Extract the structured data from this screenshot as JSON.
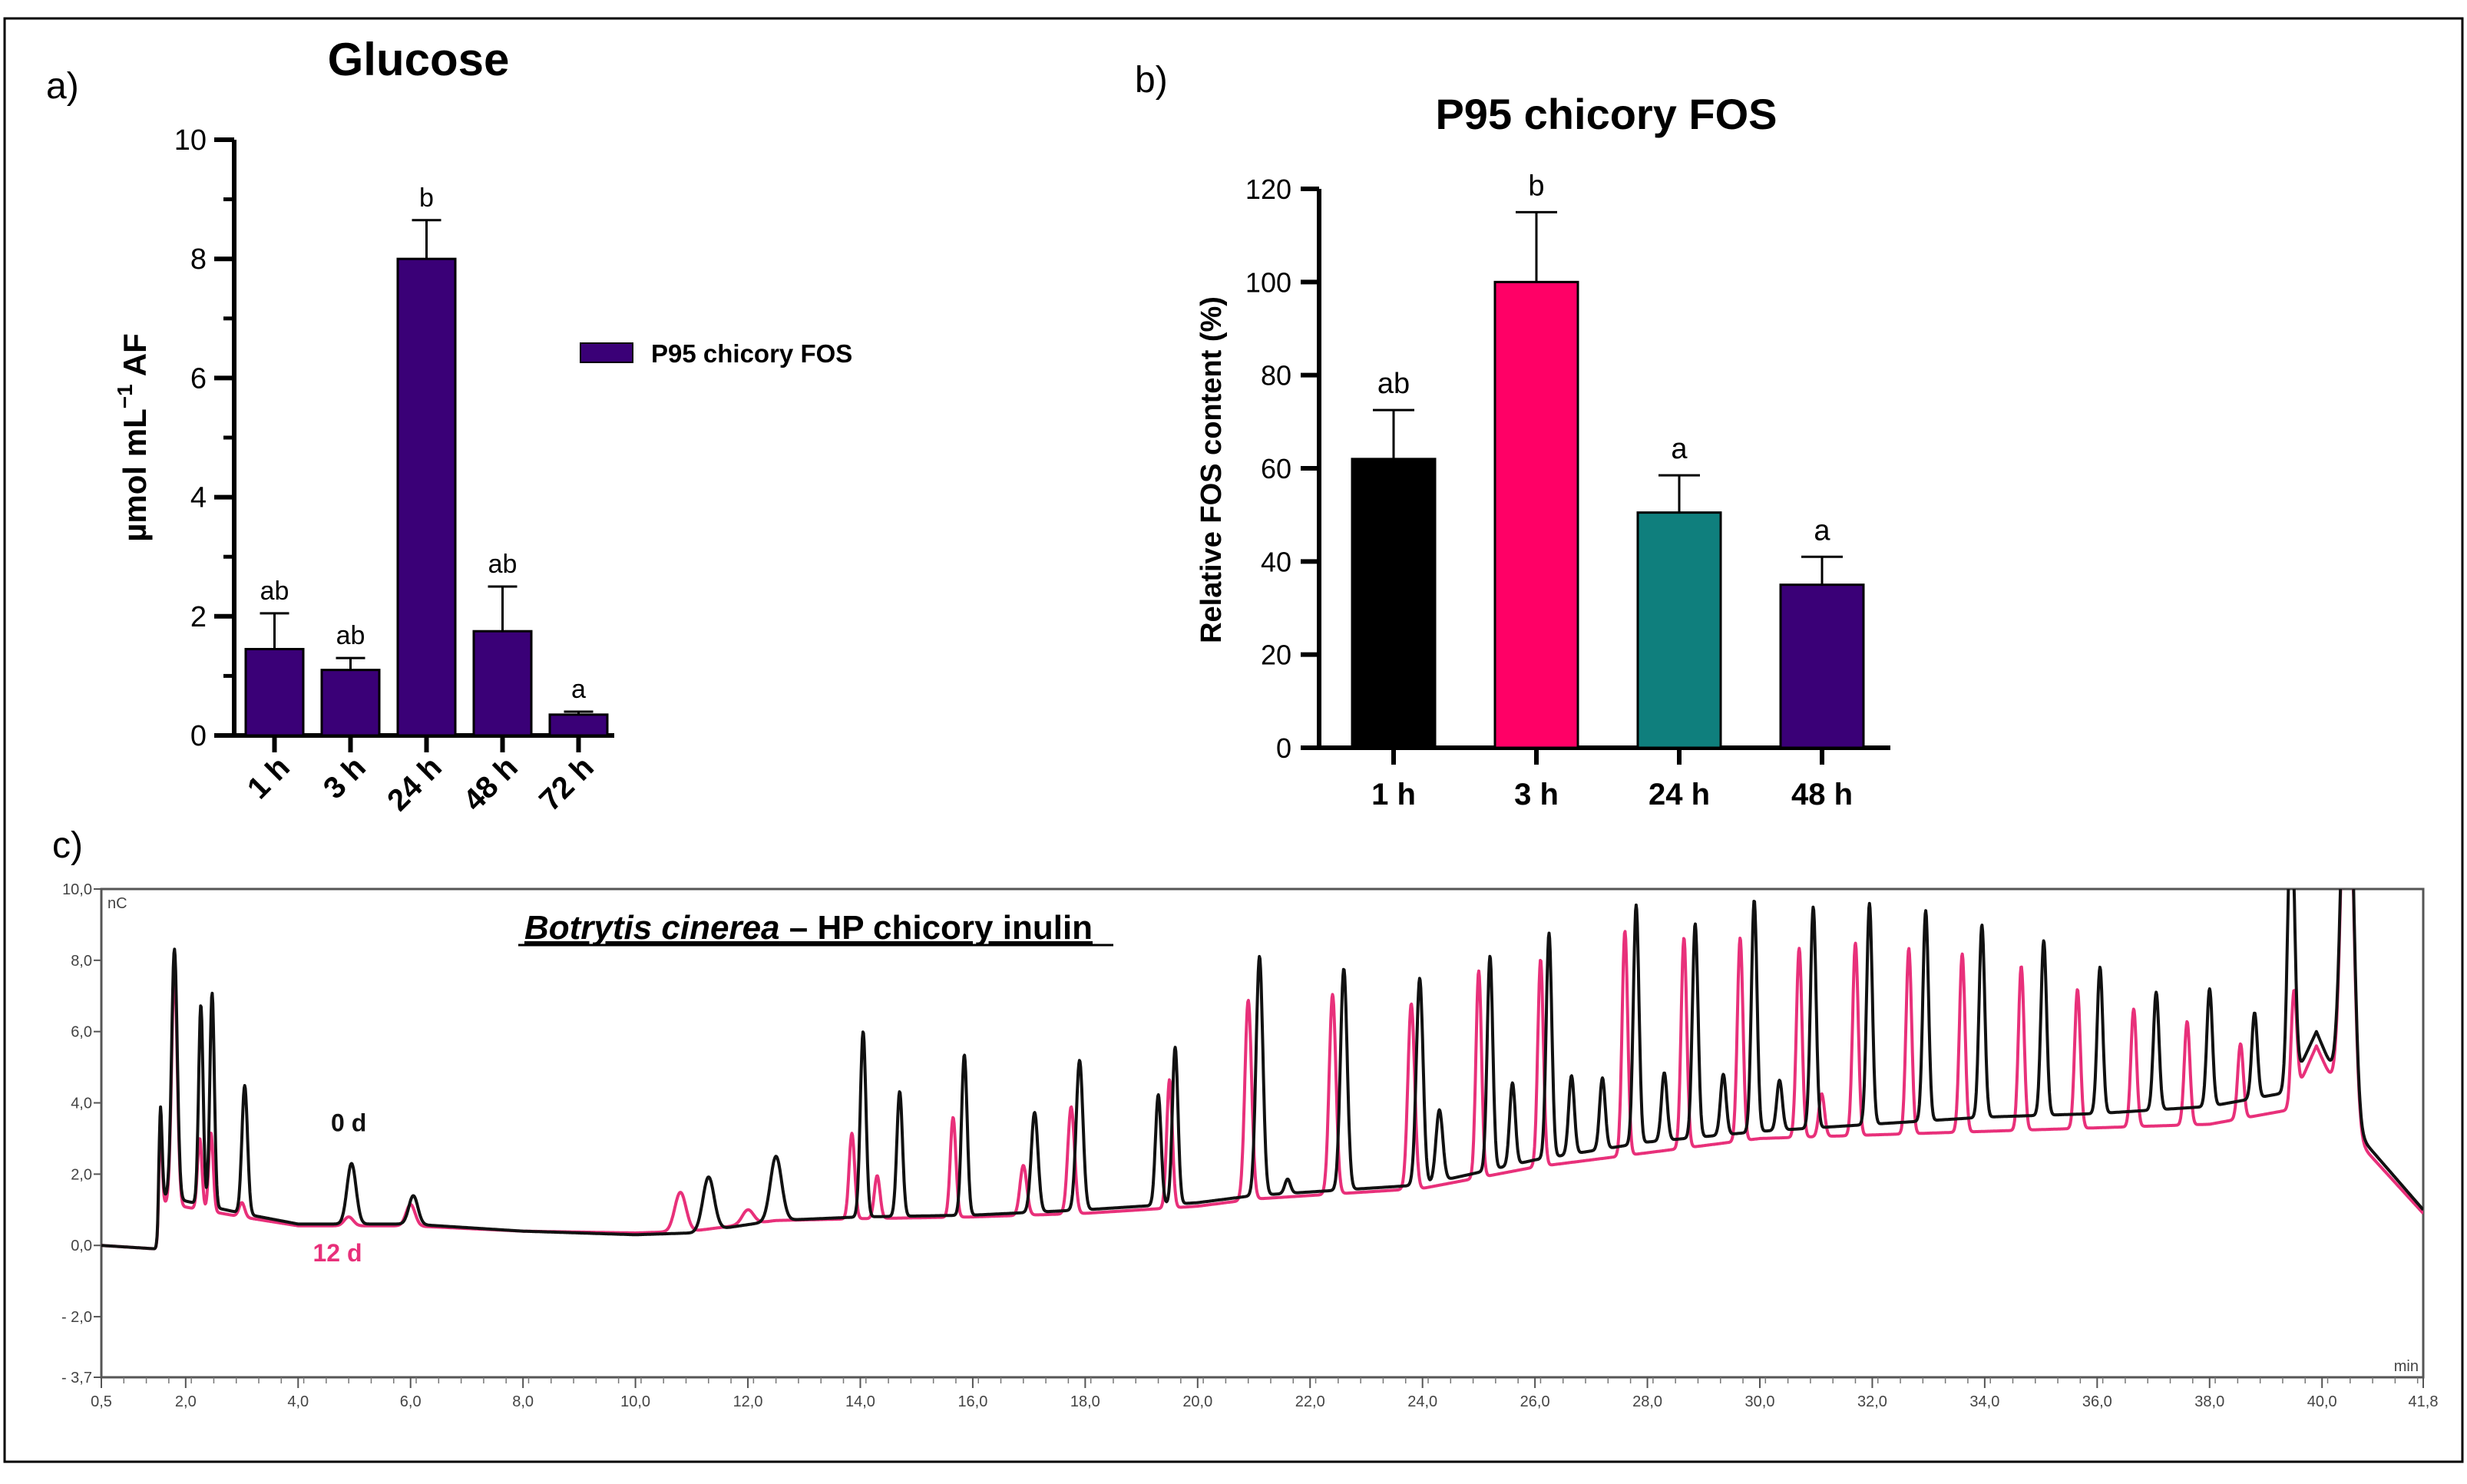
{
  "colors": {
    "purple": "#3a0077",
    "pink": "#ff0066",
    "teal": "#0f7f7d",
    "black": "#000000",
    "trace_black": "#111111",
    "trace_pink": "#e8307a"
  },
  "panels": {
    "a": {
      "letter": "a)"
    },
    "b": {
      "letter": "b)"
    },
    "c": {
      "letter": "c)"
    }
  },
  "chart_data": [
    {
      "type": "bar",
      "title": "Glucose",
      "ylabel": "µmol mL",
      "ylabel_sup": "−1",
      "ylabel_suffix": " AF",
      "xlabel": "",
      "ylim": [
        0,
        10
      ],
      "yticks": [
        "0",
        "2",
        "4",
        "6",
        "8",
        "10"
      ],
      "categories": [
        "1 h",
        "3 h",
        "24 h",
        "48 h",
        "72 h"
      ],
      "series": [
        {
          "name": "P95 chicory FOS",
          "values": [
            1.45,
            1.1,
            8.0,
            1.75,
            0.35
          ],
          "errors": [
            0.6,
            0.2,
            0.65,
            0.75,
            0.05
          ],
          "letters": [
            "ab",
            "ab",
            "b",
            "ab",
            "a"
          ],
          "color": "#3a0077"
        }
      ],
      "legend": {
        "label": "P95 chicory FOS",
        "placement": "right"
      }
    },
    {
      "type": "bar",
      "title": "P95 chicory FOS",
      "ylabel": "Relative FOS content (%)",
      "xlabel": "",
      "ylim": [
        0,
        120
      ],
      "yticks": [
        "0",
        "20",
        "40",
        "60",
        "80",
        "100",
        "120"
      ],
      "categories": [
        "1 h",
        "3 h",
        "24 h",
        "48 h"
      ],
      "series": [
        {
          "name": "Relative FOS content",
          "values": [
            62,
            100,
            50.5,
            35
          ],
          "errors": [
            10.5,
            15,
            8,
            6
          ],
          "letters": [
            "ab",
            "b",
            "a",
            "a"
          ],
          "colors": [
            "#000000",
            "#ff0066",
            "#0f7f7d",
            "#3a0077"
          ]
        }
      ]
    },
    {
      "type": "line",
      "title_italic": "Botrytis cinerea",
      "title_rest": " – HP chicory inulin",
      "y_unit_label": "nC",
      "x_unit_label": "min",
      "xlim": [
        0.5,
        41.8
      ],
      "ylim": [
        -3.7,
        10.0
      ],
      "xticks": [
        {
          "v": 0.5,
          "label": "0,5"
        },
        {
          "v": 2.0,
          "label": "2,0"
        },
        {
          "v": 4.0,
          "label": "4,0"
        },
        {
          "v": 6.0,
          "label": "6,0"
        },
        {
          "v": 8.0,
          "label": "8,0"
        },
        {
          "v": 10.0,
          "label": "10,0"
        },
        {
          "v": 12.0,
          "label": "12,0"
        },
        {
          "v": 14.0,
          "label": "14,0"
        },
        {
          "v": 16.0,
          "label": "16,0"
        },
        {
          "v": 18.0,
          "label": "18,0"
        },
        {
          "v": 20.0,
          "label": "20,0"
        },
        {
          "v": 22.0,
          "label": "22,0"
        },
        {
          "v": 24.0,
          "label": "24,0"
        },
        {
          "v": 26.0,
          "label": "26,0"
        },
        {
          "v": 28.0,
          "label": "28,0"
        },
        {
          "v": 30.0,
          "label": "30,0"
        },
        {
          "v": 32.0,
          "label": "32,0"
        },
        {
          "v": 34.0,
          "label": "34,0"
        },
        {
          "v": 36.0,
          "label": "36,0"
        },
        {
          "v": 38.0,
          "label": "38,0"
        },
        {
          "v": 40.0,
          "label": "40,0"
        },
        {
          "v": 41.8,
          "label": "41,8"
        }
      ],
      "yticks": [
        {
          "v": 10.0,
          "label": "10,0"
        },
        {
          "v": 8.0,
          "label": "8,0"
        },
        {
          "v": 6.0,
          "label": "6,0"
        },
        {
          "v": 4.0,
          "label": "4,0"
        },
        {
          "v": 2.0,
          "label": "2,0"
        },
        {
          "v": 0.0,
          "label": "0,0"
        },
        {
          "v": -2.0,
          "label": "- 2,0"
        },
        {
          "v": -3.7,
          "label": "- 3,7"
        }
      ],
      "series": [
        {
          "name": "0 d",
          "color": "#111111",
          "label_at": {
            "x": 4.9,
            "y": 3.2
          },
          "baseline": [
            [
              0.5,
              0.0
            ],
            [
              1.5,
              -0.1
            ],
            [
              1.55,
              1.4
            ],
            [
              3.0,
              0.9
            ],
            [
              4.0,
              0.6
            ],
            [
              6.0,
              0.6
            ],
            [
              8.0,
              0.4
            ],
            [
              10.0,
              0.3
            ],
            [
              11.0,
              0.35
            ],
            [
              12.5,
              0.7
            ],
            [
              14.0,
              0.8
            ],
            [
              16.0,
              0.85
            ],
            [
              18.0,
              1.0
            ],
            [
              20.0,
              1.2
            ],
            [
              21.0,
              1.4
            ],
            [
              22.0,
              1.5
            ],
            [
              24.0,
              1.7
            ],
            [
              26.0,
              2.4
            ],
            [
              28.0,
              2.9
            ],
            [
              30.0,
              3.2
            ],
            [
              32.0,
              3.4
            ],
            [
              34.0,
              3.6
            ],
            [
              36.0,
              3.7
            ],
            [
              38.0,
              3.9
            ],
            [
              39.4,
              4.3
            ],
            [
              39.9,
              6.0
            ],
            [
              40.7,
              3.0
            ],
            [
              41.8,
              1.0
            ]
          ],
          "peaks": [
            [
              1.55,
              2.5,
              0.03
            ],
            [
              1.8,
              7.0,
              0.05
            ],
            [
              2.27,
              5.6,
              0.04
            ],
            [
              2.47,
              6.0,
              0.04
            ],
            [
              3.05,
              3.6,
              0.05
            ],
            [
              4.95,
              1.7,
              0.08
            ],
            [
              6.05,
              0.8,
              0.08
            ],
            [
              11.3,
              1.5,
              0.1
            ],
            [
              12.5,
              1.8,
              0.1
            ],
            [
              14.05,
              5.2,
              0.05
            ],
            [
              14.7,
              3.5,
              0.05
            ],
            [
              15.85,
              4.5,
              0.05
            ],
            [
              17.1,
              2.8,
              0.06
            ],
            [
              17.9,
              4.2,
              0.06
            ],
            [
              19.3,
              3.1,
              0.05
            ],
            [
              19.6,
              4.4,
              0.05
            ],
            [
              21.1,
              6.7,
              0.06
            ],
            [
              21.6,
              0.4,
              0.05
            ],
            [
              22.6,
              6.2,
              0.06
            ],
            [
              23.95,
              5.8,
              0.06
            ],
            [
              24.3,
              2.0,
              0.06
            ],
            [
              25.2,
              6.0,
              0.05
            ],
            [
              25.6,
              2.3,
              0.05
            ],
            [
              26.25,
              6.3,
              0.05
            ],
            [
              26.65,
              2.2,
              0.05
            ],
            [
              27.2,
              2.0,
              0.05
            ],
            [
              27.8,
              6.7,
              0.05
            ],
            [
              28.3,
              1.9,
              0.05
            ],
            [
              28.85,
              6.0,
              0.05
            ],
            [
              29.35,
              1.7,
              0.05
            ],
            [
              29.9,
              6.5,
              0.05
            ],
            [
              30.35,
              1.4,
              0.05
            ],
            [
              30.95,
              6.2,
              0.05
            ],
            [
              31.95,
              6.2,
              0.05
            ],
            [
              32.95,
              5.9,
              0.05
            ],
            [
              33.95,
              5.4,
              0.05
            ],
            [
              35.05,
              4.9,
              0.05
            ],
            [
              36.05,
              4.1,
              0.05
            ],
            [
              37.05,
              3.3,
              0.05
            ],
            [
              38.0,
              3.3,
              0.05
            ],
            [
              38.8,
              2.4,
              0.05
            ],
            [
              39.45,
              8.0,
              0.06
            ],
            [
              40.45,
              12.0,
              0.1
            ]
          ]
        },
        {
          "name": "12 d",
          "color": "#e8307a",
          "label_at": {
            "x": 4.7,
            "y": -0.45
          },
          "baseline": [
            [
              0.5,
              0.0
            ],
            [
              1.5,
              -0.1
            ],
            [
              1.55,
              1.2
            ],
            [
              3.0,
              0.8
            ],
            [
              4.0,
              0.55
            ],
            [
              6.0,
              0.55
            ],
            [
              8.0,
              0.4
            ],
            [
              10.0,
              0.35
            ],
            [
              11.0,
              0.4
            ],
            [
              12.5,
              0.7
            ],
            [
              14.0,
              0.75
            ],
            [
              16.0,
              0.8
            ],
            [
              18.0,
              0.9
            ],
            [
              20.0,
              1.1
            ],
            [
              21.0,
              1.3
            ],
            [
              22.0,
              1.4
            ],
            [
              24.0,
              1.6
            ],
            [
              26.0,
              2.2
            ],
            [
              28.0,
              2.6
            ],
            [
              30.0,
              3.0
            ],
            [
              32.0,
              3.1
            ],
            [
              34.0,
              3.2
            ],
            [
              36.0,
              3.3
            ],
            [
              38.0,
              3.4
            ],
            [
              39.4,
              3.8
            ],
            [
              39.9,
              5.6
            ],
            [
              40.7,
              2.8
            ],
            [
              41.8,
              0.9
            ]
          ],
          "peaks": [
            [
              1.55,
              2.2,
              0.03
            ],
            [
              1.8,
              6.6,
              0.05
            ],
            [
              2.25,
              2.0,
              0.04
            ],
            [
              2.45,
              2.2,
              0.04
            ],
            [
              3.0,
              0.4,
              0.05
            ],
            [
              4.9,
              0.25,
              0.08
            ],
            [
              6.0,
              0.6,
              0.08
            ],
            [
              10.8,
              1.1,
              0.1
            ],
            [
              12.0,
              0.4,
              0.1
            ],
            [
              13.85,
              2.4,
              0.05
            ],
            [
              14.3,
              1.2,
              0.05
            ],
            [
              15.65,
              2.8,
              0.05
            ],
            [
              16.9,
              1.4,
              0.06
            ],
            [
              17.75,
              3.0,
              0.06
            ],
            [
              19.5,
              3.6,
              0.05
            ],
            [
              20.9,
              5.6,
              0.06
            ],
            [
              22.4,
              5.6,
              0.06
            ],
            [
              23.8,
              5.2,
              0.06
            ],
            [
              25.0,
              5.8,
              0.05
            ],
            [
              26.1,
              5.8,
              0.05
            ],
            [
              27.6,
              6.3,
              0.05
            ],
            [
              28.65,
              5.9,
              0.05
            ],
            [
              29.65,
              5.7,
              0.05
            ],
            [
              30.7,
              5.3,
              0.05
            ],
            [
              31.1,
              1.2,
              0.05
            ],
            [
              31.7,
              5.4,
              0.05
            ],
            [
              32.65,
              5.2,
              0.05
            ],
            [
              33.6,
              5.0,
              0.05
            ],
            [
              34.65,
              4.6,
              0.05
            ],
            [
              35.65,
              3.9,
              0.05
            ],
            [
              36.65,
              3.3,
              0.05
            ],
            [
              37.6,
              2.9,
              0.05
            ],
            [
              38.55,
              2.1,
              0.05
            ],
            [
              39.5,
              3.0,
              0.05
            ],
            [
              40.45,
              12.0,
              0.1
            ]
          ]
        }
      ]
    }
  ]
}
